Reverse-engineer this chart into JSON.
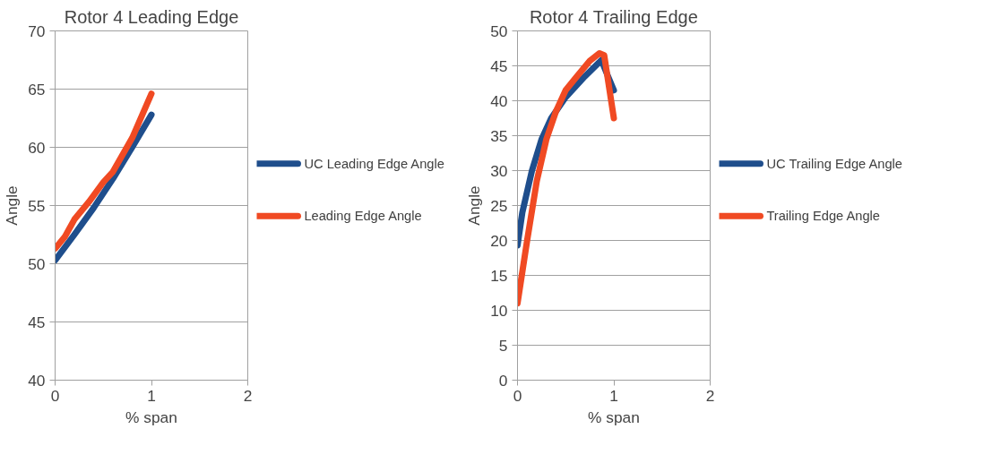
{
  "chart_data": [
    {
      "type": "line",
      "title": "Rotor 4 Leading Edge",
      "xlabel": "% span",
      "ylabel": "Angle",
      "xlim": [
        0,
        2
      ],
      "xticks": [
        0,
        1,
        2
      ],
      "ylim": [
        40,
        70
      ],
      "yticks": [
        40,
        45,
        50,
        55,
        60,
        65,
        70
      ],
      "grid": "y",
      "legend": "right",
      "marker": "none",
      "line_style": "solid",
      "series": [
        {
          "name": "UC Leading Edge Angle",
          "color": "#1f4e8c",
          "x": [
            0,
            0.2,
            0.4,
            0.6,
            0.8,
            1
          ],
          "values": [
            50.3,
            52.5,
            54.8,
            57.3,
            60,
            62.8
          ]
        },
        {
          "name": "Leading Edge Angle",
          "color": "#f04a23",
          "x": [
            0,
            0.1,
            0.2,
            0.35,
            0.5,
            0.6,
            0.8,
            1
          ],
          "values": [
            51.3,
            52.3,
            53.8,
            55.3,
            57,
            57.9,
            60.8,
            64.6
          ]
        }
      ]
    },
    {
      "type": "line",
      "title": "Rotor 4 Trailing Edge",
      "xlabel": "% span",
      "ylabel": "Angle",
      "xlim": [
        0,
        2
      ],
      "xticks": [
        0,
        1,
        2
      ],
      "ylim": [
        0,
        50
      ],
      "yticks": [
        0,
        5,
        10,
        15,
        20,
        25,
        30,
        35,
        40,
        45,
        50
      ],
      "grid": "y",
      "legend": "right",
      "marker": "none",
      "line_style": "solid",
      "series": [
        {
          "name": "UC Trailing Edge Angle",
          "color": "#1f4e8c",
          "x": [
            0,
            0.05,
            0.15,
            0.25,
            0.35,
            0.5,
            0.7,
            0.87,
            1
          ],
          "values": [
            19.3,
            24,
            30,
            34.5,
            37.5,
            40.5,
            43.5,
            45.8,
            41.5
          ]
        },
        {
          "name": "Trailing Edge Angle",
          "color": "#f04a23",
          "x": [
            0,
            0.1,
            0.2,
            0.3,
            0.4,
            0.5,
            0.6,
            0.75,
            0.85,
            0.9,
            1
          ],
          "values": [
            11,
            20,
            28.5,
            34.5,
            38.5,
            41.5,
            43.2,
            45.7,
            46.8,
            46.5,
            37.5
          ]
        }
      ]
    }
  ]
}
